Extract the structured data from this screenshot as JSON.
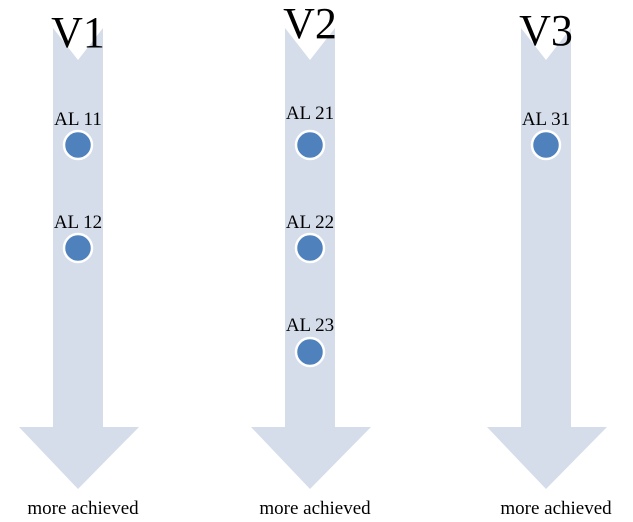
{
  "columns": [
    {
      "title": "V1",
      "caption": "more achieved",
      "nodes": [
        {
          "label": "AL 11"
        },
        {
          "label": "AL 12"
        }
      ]
    },
    {
      "title": "V2",
      "caption": "more achieved",
      "nodes": [
        {
          "label": "AL 21"
        },
        {
          "label": "AL 22"
        },
        {
          "label": "AL 23"
        }
      ]
    },
    {
      "title": "V3",
      "caption": "more achieved",
      "nodes": [
        {
          "label": "AL 31"
        }
      ]
    }
  ],
  "colors": {
    "arrow": "#d5dcea",
    "node": "#4f81bd",
    "node_border": "#ffffff",
    "text": "#000000"
  }
}
